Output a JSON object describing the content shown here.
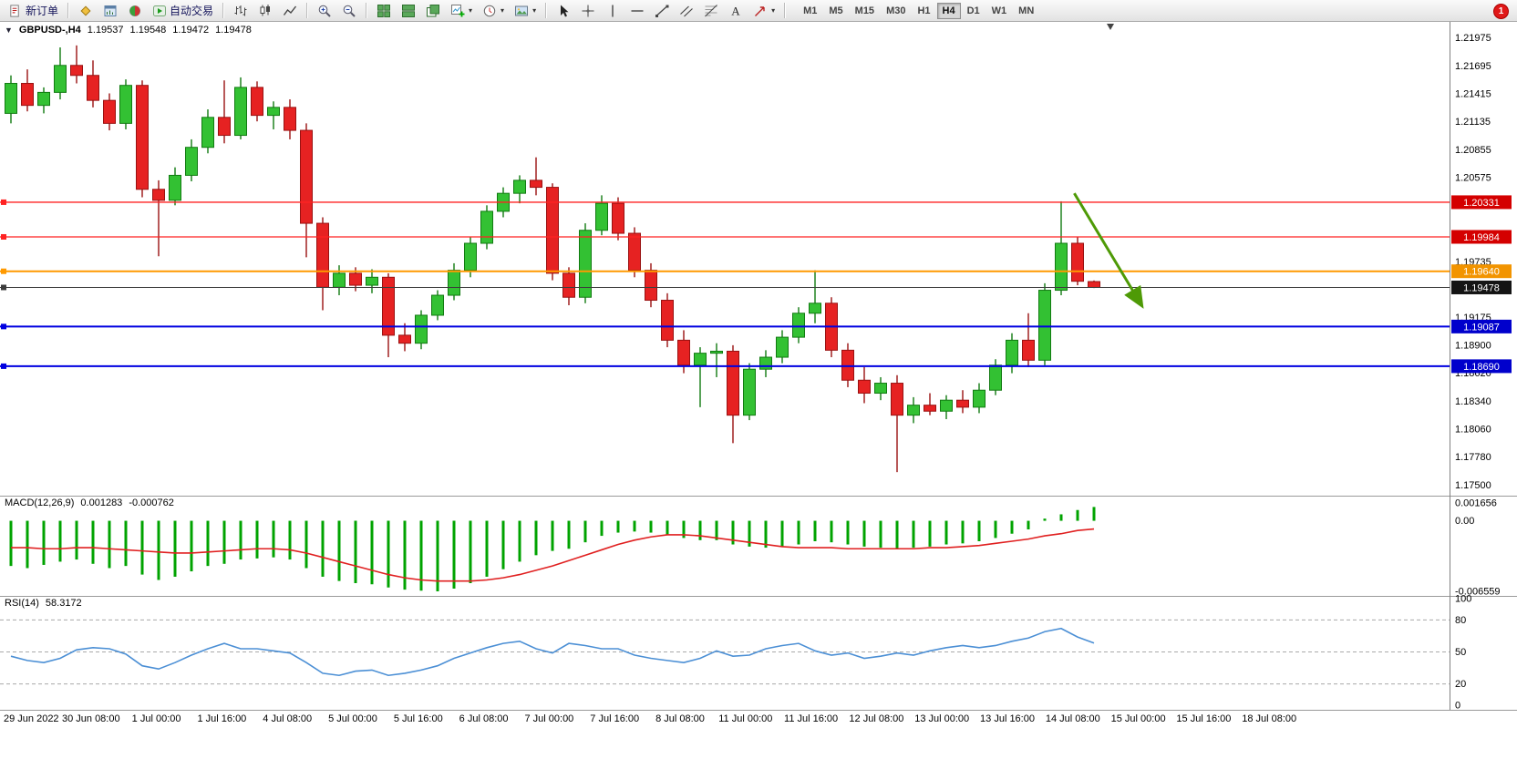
{
  "toolbar": {
    "new_order_label": "新订单",
    "autotrading_label": "自动交易",
    "timeframes": [
      "M1",
      "M5",
      "M15",
      "M30",
      "H1",
      "H4",
      "D1",
      "W1",
      "MN"
    ],
    "active_timeframe": "H4",
    "notification_count": "1"
  },
  "chart": {
    "title": {
      "collapse_glyph": "▼",
      "symbol_period": "GBPUSD-,H4",
      "open": "1.19537",
      "high": "1.19548",
      "low": "1.19472",
      "close": "1.19478"
    },
    "price_axis_labels": [
      "1.21975",
      "1.21695",
      "1.21415",
      "1.21135",
      "1.20855",
      "1.20575",
      "1.19735",
      "1.19175",
      "1.18900",
      "1.18620",
      "1.18340",
      "1.18060",
      "1.17780",
      "1.17500"
    ],
    "levels": [
      {
        "price": 1.20331,
        "color": "#ff2222",
        "width": 1.3,
        "badge": "1.20331",
        "badge_color": "#d40000"
      },
      {
        "price": 1.19984,
        "color": "#ff2222",
        "width": 1.3,
        "badge": "1.19984",
        "badge_color": "#d40000"
      },
      {
        "price": 1.1964,
        "color": "#ff9900",
        "width": 2,
        "badge": "1.19640",
        "badge_color": "#f29400"
      },
      {
        "price": 1.19478,
        "color": "#3c3c3c",
        "width": 1,
        "badge": "1.19478",
        "badge_color": "#141414"
      },
      {
        "price": 1.19087,
        "color": "#0000e0",
        "width": 2,
        "badge": "1.19087",
        "badge_color": "#0000cc"
      },
      {
        "price": 1.1869,
        "color": "#0000e0",
        "width": 2,
        "badge": "1.18690",
        "badge_color": "#0000cc"
      }
    ],
    "time_axis": [
      "29 Jun 2022",
      "30 Jun 08:00",
      "1 Jul 00:00",
      "1 Jul 16:00",
      "4 Jul 08:00",
      "5 Jul 00:00",
      "5 Jul 16:00",
      "6 Jul 08:00",
      "7 Jul 00:00",
      "7 Jul 16:00",
      "8 Jul 08:00",
      "11 Jul 00:00",
      "11 Jul 16:00",
      "12 Jul 08:00",
      "13 Jul 00:00",
      "13 Jul 16:00",
      "14 Jul 08:00",
      "15 Jul 00:00",
      "15 Jul 16:00",
      "18 Jul 08:00"
    ],
    "annotation_arrow": {
      "from_bar": 64.8,
      "from_price": 1.2042,
      "to_bar": 68.9,
      "to_price": 1.193,
      "color": "#4e9a06"
    },
    "shift_marker_bar": 67
  },
  "chart_data": {
    "type": "candlestick",
    "symbol": "GBPUSD-",
    "period": "H4",
    "price_range": [
      1.1744,
      1.2209
    ],
    "candles": [
      [
        1.2122,
        1.216,
        1.2112,
        1.2152
      ],
      [
        1.2152,
        1.2166,
        1.2124,
        1.213
      ],
      [
        1.213,
        1.2148,
        1.2122,
        1.2143
      ],
      [
        1.2143,
        1.2188,
        1.2136,
        1.217
      ],
      [
        1.217,
        1.219,
        1.2152,
        1.216
      ],
      [
        1.216,
        1.2175,
        1.2128,
        1.2135
      ],
      [
        1.2135,
        1.2142,
        1.2105,
        1.2112
      ],
      [
        1.2112,
        1.2156,
        1.2106,
        1.215
      ],
      [
        1.215,
        1.2155,
        1.2038,
        1.2046
      ],
      [
        1.2046,
        1.2055,
        1.1979,
        1.2035
      ],
      [
        1.2035,
        1.2068,
        1.203,
        1.206
      ],
      [
        1.206,
        1.2096,
        1.2054,
        1.2088
      ],
      [
        1.2088,
        1.2126,
        1.2082,
        1.2118
      ],
      [
        1.2118,
        1.2155,
        1.2092,
        1.21
      ],
      [
        1.21,
        1.2158,
        1.2096,
        1.2148
      ],
      [
        1.2148,
        1.2154,
        1.2114,
        1.212
      ],
      [
        1.212,
        1.2134,
        1.2106,
        1.2128
      ],
      [
        1.2128,
        1.2136,
        1.2096,
        1.2105
      ],
      [
        1.2105,
        1.2112,
        1.1978,
        1.2012
      ],
      [
        1.2012,
        1.2018,
        1.1925,
        1.1948
      ],
      [
        1.1948,
        1.197,
        1.194,
        1.1962
      ],
      [
        1.1962,
        1.1968,
        1.1944,
        1.195
      ],
      [
        1.195,
        1.1966,
        1.1942,
        1.1958
      ],
      [
        1.1958,
        1.1962,
        1.1878,
        1.19
      ],
      [
        1.19,
        1.1912,
        1.1884,
        1.1892
      ],
      [
        1.1892,
        1.1925,
        1.1886,
        1.192
      ],
      [
        1.192,
        1.1945,
        1.1915,
        1.194
      ],
      [
        1.194,
        1.1972,
        1.1935,
        1.1965
      ],
      [
        1.1965,
        1.1998,
        1.1958,
        1.1992
      ],
      [
        1.1992,
        1.203,
        1.1986,
        1.2024
      ],
      [
        1.2024,
        1.2048,
        1.2018,
        1.2042
      ],
      [
        1.2042,
        1.206,
        1.2032,
        1.2055
      ],
      [
        1.2055,
        1.2078,
        1.204,
        1.2048
      ],
      [
        1.2048,
        1.2052,
        1.1955,
        1.1962
      ],
      [
        1.1962,
        1.1968,
        1.193,
        1.1938
      ],
      [
        1.1938,
        1.2012,
        1.1932,
        1.2005
      ],
      [
        1.2005,
        1.204,
        1.2,
        1.2032
      ],
      [
        1.2032,
        1.2038,
        1.1995,
        1.2002
      ],
      [
        1.2002,
        1.2008,
        1.1958,
        1.1965
      ],
      [
        1.1965,
        1.1972,
        1.1928,
        1.1935
      ],
      [
        1.1935,
        1.1942,
        1.1888,
        1.1895
      ],
      [
        1.1895,
        1.1905,
        1.1862,
        1.187
      ],
      [
        1.187,
        1.1888,
        1.1828,
        1.1882
      ],
      [
        1.1882,
        1.1892,
        1.1858,
        1.1884
      ],
      [
        1.1884,
        1.189,
        1.1792,
        1.182
      ],
      [
        1.182,
        1.1872,
        1.1815,
        1.1866
      ],
      [
        1.1866,
        1.1885,
        1.1858,
        1.1878
      ],
      [
        1.1878,
        1.1905,
        1.1872,
        1.1898
      ],
      [
        1.1898,
        1.1928,
        1.1892,
        1.1922
      ],
      [
        1.1922,
        1.1965,
        1.1912,
        1.1932
      ],
      [
        1.1932,
        1.1938,
        1.1878,
        1.1885
      ],
      [
        1.1885,
        1.1892,
        1.1848,
        1.1855
      ],
      [
        1.1855,
        1.1868,
        1.1832,
        1.1842
      ],
      [
        1.1842,
        1.1858,
        1.1835,
        1.1852
      ],
      [
        1.1852,
        1.186,
        1.1763,
        1.182
      ],
      [
        1.182,
        1.1838,
        1.1812,
        1.183
      ],
      [
        1.183,
        1.1842,
        1.182,
        1.1824
      ],
      [
        1.1824,
        1.184,
        1.1816,
        1.1835
      ],
      [
        1.1835,
        1.1845,
        1.1822,
        1.1828
      ],
      [
        1.1828,
        1.1852,
        1.1822,
        1.1845
      ],
      [
        1.1845,
        1.1876,
        1.184,
        1.187
      ],
      [
        1.187,
        1.1902,
        1.1862,
        1.1895
      ],
      [
        1.1895,
        1.1922,
        1.1868,
        1.1875
      ],
      [
        1.1875,
        1.1952,
        1.187,
        1.1945
      ],
      [
        1.1945,
        1.2034,
        1.194,
        1.1992
      ],
      [
        1.1992,
        1.1998,
        1.195,
        1.1954
      ],
      [
        1.19537,
        1.19548,
        1.19472,
        1.19478
      ]
    ],
    "macd": {
      "label": "MACD(12,26,9)",
      "main_value": "0.001283",
      "signal_value": "-0.000762",
      "scale": [
        -0.006559,
        0.001656
      ],
      "axis_labels": [
        {
          "text": "0.001656",
          "value": 0.001656
        },
        {
          "text": "0.00",
          "value": 0
        },
        {
          "text": "-0.006559",
          "value": -0.006559
        }
      ],
      "histogram": [
        -0.0042,
        -0.0044,
        -0.0041,
        -0.0038,
        -0.0036,
        -0.004,
        -0.0044,
        -0.0042,
        -0.005,
        -0.0055,
        -0.0052,
        -0.0047,
        -0.0042,
        -0.004,
        -0.0036,
        -0.0035,
        -0.0034,
        -0.0036,
        -0.0044,
        -0.0052,
        -0.0056,
        -0.0058,
        -0.0059,
        -0.0062,
        -0.0064,
        -0.0065,
        -0.006559,
        -0.0063,
        -0.0058,
        -0.0052,
        -0.0045,
        -0.0038,
        -0.0032,
        -0.0028,
        -0.0026,
        -0.002,
        -0.0014,
        -0.0011,
        -0.001,
        -0.0011,
        -0.0013,
        -0.0016,
        -0.0018,
        -0.0018,
        -0.0022,
        -0.0024,
        -0.0025,
        -0.0024,
        -0.0022,
        -0.0019,
        -0.002,
        -0.0022,
        -0.0024,
        -0.0025,
        -0.0026,
        -0.0025,
        -0.0024,
        -0.0022,
        -0.0021,
        -0.0019,
        -0.0016,
        -0.0012,
        -0.0008,
        0.0002,
        0.0006,
        0.001,
        0.001283
      ],
      "signal": [
        -0.0025,
        -0.0025,
        -0.0026,
        -0.0026,
        -0.0025,
        -0.0025,
        -0.0026,
        -0.0027,
        -0.0028,
        -0.0029,
        -0.003,
        -0.003,
        -0.0029,
        -0.0028,
        -0.0027,
        -0.0026,
        -0.0026,
        -0.0027,
        -0.003,
        -0.0034,
        -0.0038,
        -0.0042,
        -0.0046,
        -0.005,
        -0.0053,
        -0.0055,
        -0.0056,
        -0.0056,
        -0.0056,
        -0.0055,
        -0.0053,
        -0.005,
        -0.0046,
        -0.0042,
        -0.0037,
        -0.0032,
        -0.0027,
        -0.0022,
        -0.0018,
        -0.0015,
        -0.0013,
        -0.0013,
        -0.0014,
        -0.0016,
        -0.0018,
        -0.002,
        -0.0022,
        -0.0024,
        -0.0025,
        -0.0025,
        -0.0025,
        -0.0026,
        -0.0026,
        -0.0026,
        -0.0026,
        -0.0026,
        -0.0025,
        -0.0025,
        -0.0024,
        -0.0023,
        -0.0021,
        -0.0019,
        -0.0017,
        -0.0014,
        -0.0012,
        -0.0009,
        -0.000762
      ]
    },
    "rsi": {
      "label": "RSI(14)",
      "value": "58.3172",
      "levels": [
        80,
        50,
        20
      ],
      "axis_labels": [
        {
          "text": "100",
          "value": 100
        },
        {
          "text": "80",
          "value": 80
        },
        {
          "text": "50",
          "value": 50
        },
        {
          "text": "20",
          "value": 20
        },
        {
          "text": "0",
          "value": 0
        }
      ],
      "values": [
        46,
        42,
        40,
        44,
        52,
        54,
        53,
        48,
        37,
        34,
        40,
        47,
        53,
        58,
        53,
        53,
        51,
        49,
        40,
        30,
        28,
        32,
        33,
        28,
        30,
        33,
        37,
        44,
        49,
        54,
        58,
        60,
        53,
        49,
        58,
        56,
        53,
        53,
        47,
        44,
        42,
        40,
        44,
        51,
        46,
        47,
        53,
        56,
        58,
        51,
        47,
        49,
        44,
        46,
        49,
        47,
        51,
        54,
        56,
        54,
        56,
        60,
        63,
        69,
        72,
        64,
        58.3172
      ]
    }
  },
  "colors": {
    "up_fill": "#33c133",
    "up_stroke": "#117a11",
    "down_fill": "#e62222",
    "down_stroke": "#991111",
    "macd_hist": "#00a300",
    "macd_signal": "#e02020",
    "rsi_line": "#4b8fd5"
  }
}
